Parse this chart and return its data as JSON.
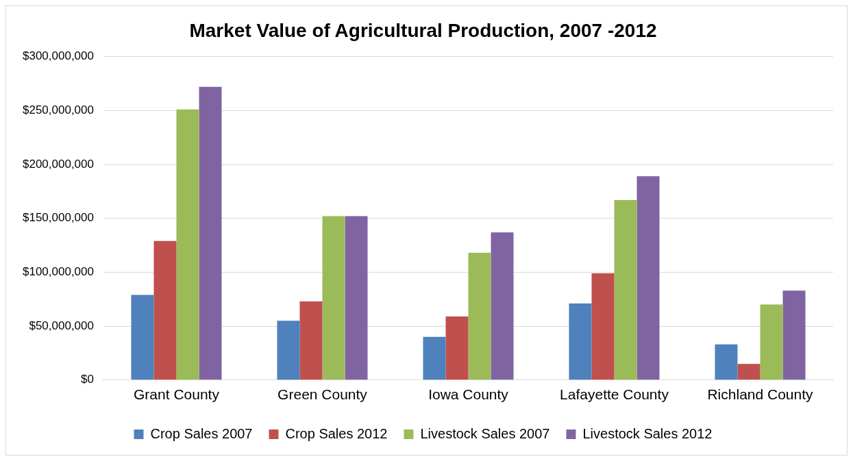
{
  "chart_data": {
    "type": "bar",
    "title": "Market Value of Agricultural Production, 2007 -2012",
    "categories": [
      "Grant County",
      "Green County",
      "Iowa County",
      "Lafayette County",
      "Richland County"
    ],
    "series": [
      {
        "name": "Crop Sales 2007",
        "color": "#4f81bd",
        "values": [
          79000000,
          55000000,
          40000000,
          71000000,
          33000000
        ]
      },
      {
        "name": "Crop Sales 2012",
        "color": "#c0504d",
        "values": [
          129000000,
          73000000,
          59000000,
          99000000,
          15000000
        ]
      },
      {
        "name": "Livestock Sales 2007",
        "color": "#9bbb59",
        "values": [
          251000000,
          152000000,
          118000000,
          167000000,
          70000000
        ]
      },
      {
        "name": "Livestock Sales 2012",
        "color": "#8064a2",
        "values": [
          272000000,
          152000000,
          137000000,
          189000000,
          83000000
        ]
      }
    ],
    "ylim": [
      0,
      300000000
    ],
    "yticks": [
      {
        "value": 0,
        "label": "$0"
      },
      {
        "value": 50000000,
        "label": "$50,000,000"
      },
      {
        "value": 100000000,
        "label": "$100,000,000"
      },
      {
        "value": 150000000,
        "label": "$150,000,000"
      },
      {
        "value": 200000000,
        "label": "$200,000,000"
      },
      {
        "value": 250000000,
        "label": "$250,000,000"
      },
      {
        "value": 300000000,
        "label": "$300,000,000"
      }
    ],
    "grid": "y",
    "legend": "bottom"
  }
}
